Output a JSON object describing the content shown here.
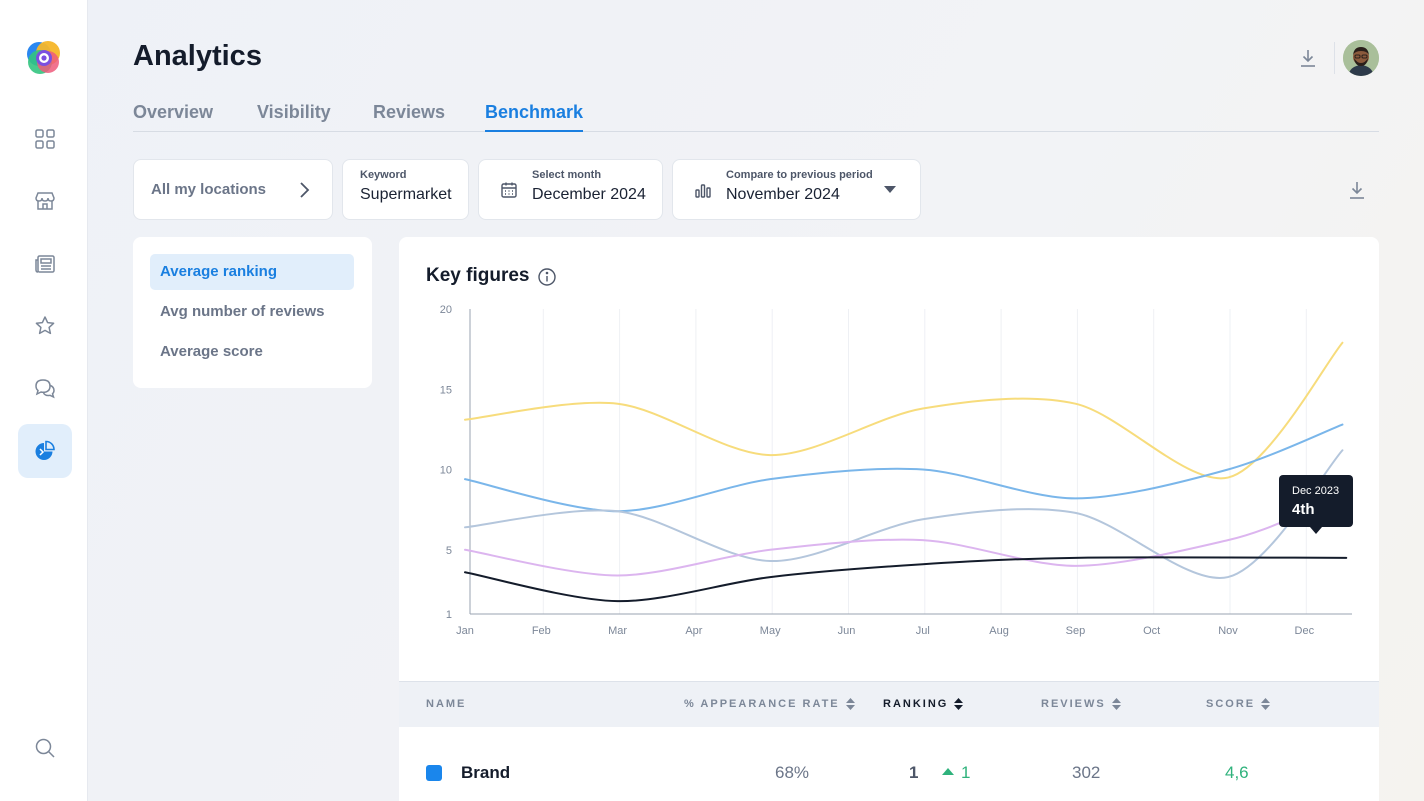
{
  "header": {
    "title": "Analytics"
  },
  "tabs": [
    {
      "label": "Overview",
      "active": false
    },
    {
      "label": "Visibility",
      "active": false
    },
    {
      "label": "Reviews",
      "active": false
    },
    {
      "label": "Benchmark",
      "active": true
    }
  ],
  "filters": {
    "locations": "All my locations",
    "keyword": {
      "label": "Keyword",
      "value": "Supermarket"
    },
    "month": {
      "label": "Select month",
      "value": "December 2024"
    },
    "compare": {
      "label": "Compare to previous period",
      "value": "November 2024"
    }
  },
  "metrics": [
    {
      "label": "Average ranking",
      "active": true
    },
    {
      "label": "Avg number of reviews",
      "active": false
    },
    {
      "label": "Average score",
      "active": false
    }
  ],
  "chart": {
    "title": "Key figures",
    "tooltip": {
      "period": "Dec 2023",
      "value": "4th"
    }
  },
  "chart_data": {
    "type": "line",
    "title": "Key figures",
    "x": [
      "Jan",
      "Feb",
      "Mar",
      "Apr",
      "May",
      "Jun",
      "Jul",
      "Aug",
      "Sep",
      "Oct",
      "Nov",
      "Dec"
    ],
    "yticks": [
      20,
      15,
      10,
      5,
      1
    ],
    "ylim": [
      1,
      20
    ],
    "grid": "vertical",
    "series": [
      {
        "color": "#f7dc7c",
        "points": [
          [
            0,
            13.1
          ],
          [
            2,
            14.1
          ],
          [
            4,
            10.9
          ],
          [
            6,
            13.8
          ],
          [
            8,
            14.1
          ],
          [
            10,
            9.5
          ],
          [
            11.5,
            17.9
          ]
        ]
      },
      {
        "color": "#7ab6ea",
        "points": [
          [
            0,
            9.4
          ],
          [
            2,
            7.4
          ],
          [
            4,
            9.4
          ],
          [
            6,
            10.0
          ],
          [
            8,
            8.2
          ],
          [
            10,
            10.0
          ],
          [
            11.5,
            12.8
          ]
        ]
      },
      {
        "color": "#b4c6dc",
        "points": [
          [
            0,
            6.4
          ],
          [
            2,
            7.4
          ],
          [
            4,
            4.3
          ],
          [
            6,
            6.9
          ],
          [
            8,
            7.3
          ],
          [
            10,
            3.3
          ],
          [
            11.5,
            11.2
          ]
        ]
      },
      {
        "color": "#dcb5ef",
        "points": [
          [
            0,
            5.0
          ],
          [
            2,
            3.4
          ],
          [
            4,
            5.0
          ],
          [
            6,
            5.6
          ],
          [
            8,
            4.0
          ],
          [
            10,
            5.6
          ],
          [
            11,
            7.3
          ]
        ]
      },
      {
        "color": "#141c2b",
        "points": [
          [
            0,
            3.6
          ],
          [
            2,
            1.8
          ],
          [
            4,
            3.3
          ],
          [
            6,
            4.1
          ],
          [
            8,
            4.5
          ],
          [
            11.55,
            4.5
          ]
        ]
      }
    ]
  },
  "table": {
    "columns": [
      {
        "label": "NAME",
        "sortable": false,
        "active": false
      },
      {
        "label": "% APPEARANCE RATE",
        "sortable": true,
        "active": false
      },
      {
        "label": "RANKING",
        "sortable": true,
        "active": true
      },
      {
        "label": "REVIEWS",
        "sortable": true,
        "active": false
      },
      {
        "label": "SCORE",
        "sortable": true,
        "active": false
      }
    ],
    "rows": [
      {
        "color": "#1a86ec",
        "name": "Brand",
        "appearance": "68%",
        "ranking": "1",
        "change": "1",
        "reviews": "302",
        "score": "4,6"
      }
    ]
  }
}
